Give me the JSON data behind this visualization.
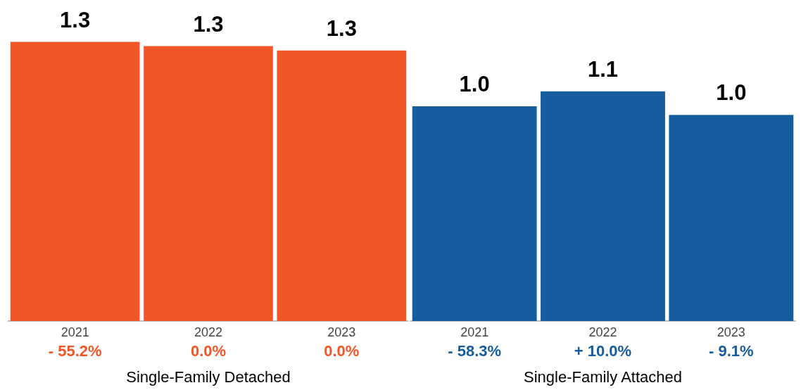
{
  "chart_data": [
    {
      "type": "bar",
      "categories": [
        "2021",
        "2022",
        "2023"
      ],
      "values": [
        1.3,
        1.28,
        1.26
      ],
      "value_labels": [
        "1.3",
        "1.3",
        "1.3"
      ],
      "color": "#f05627",
      "xlabel": "Single-Family Detached",
      "annotations": [
        "- 55.2%",
        "0.0%",
        "0.0%"
      ],
      "grid": false
    },
    {
      "type": "bar",
      "categories": [
        "2021",
        "2022",
        "2023"
      ],
      "values": [
        1.0,
        1.07,
        0.96
      ],
      "value_labels": [
        "1.0",
        "1.1",
        "1.0"
      ],
      "color": "#165d9d",
      "xlabel": "Single-Family Attached",
      "annotations": [
        "- 58.3%",
        "+ 10.0%",
        "- 9.1%"
      ],
      "grid": false
    }
  ]
}
